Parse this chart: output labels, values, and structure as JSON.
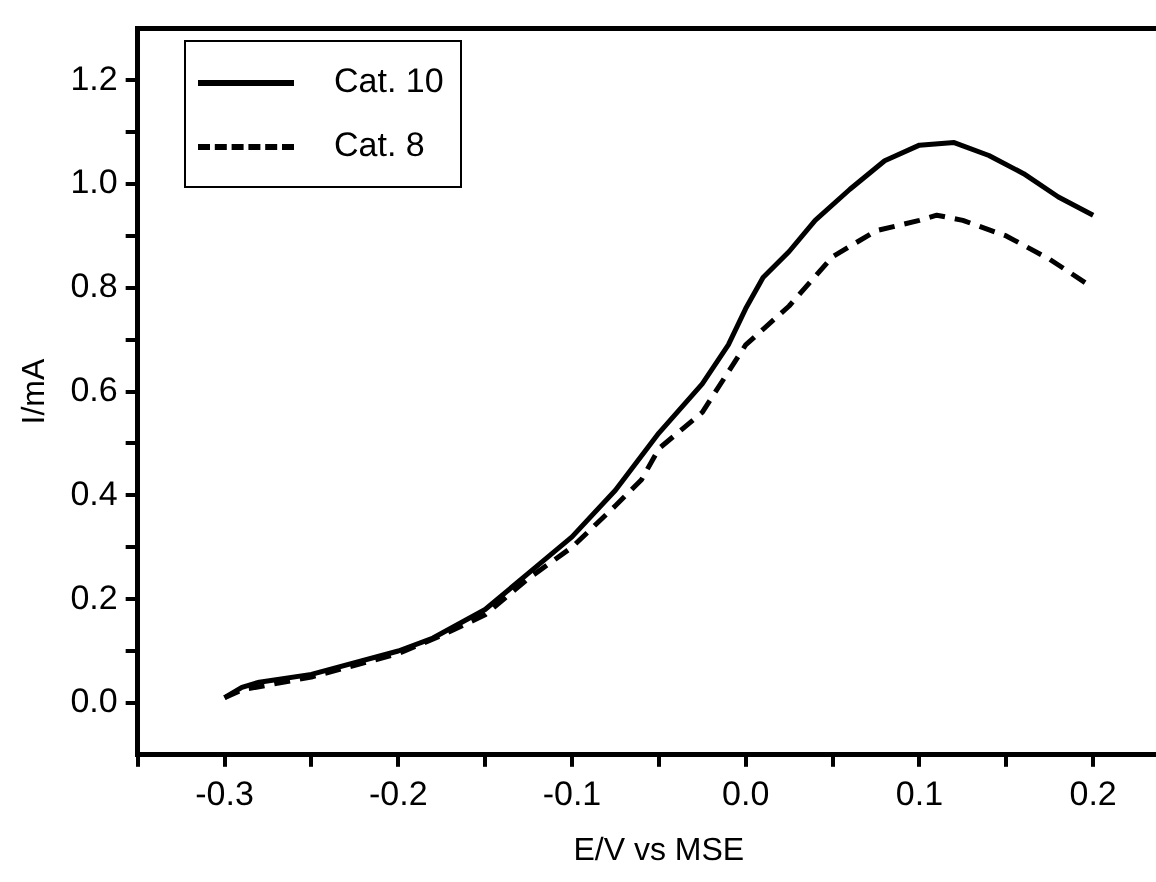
{
  "chart_data": {
    "type": "line",
    "xlabel": "E/V vs MSE",
    "ylabel": "I/mA",
    "xlim": [
      -0.35,
      0.25
    ],
    "xticks": [
      {
        "value": -0.3,
        "label": "-0.3"
      },
      {
        "value": -0.2,
        "label": "-0.2"
      },
      {
        "value": -0.1,
        "label": "-0.1"
      },
      {
        "value": 0,
        "label": "0.0"
      },
      {
        "value": 0.1,
        "label": "0.1"
      },
      {
        "value": 0.2,
        "label": "0.2"
      },
      {
        "value": -0.35,
        "label": null
      },
      {
        "value": -0.25,
        "label": null
      },
      {
        "value": -0.15,
        "label": null
      },
      {
        "value": -0.05,
        "label": null
      },
      {
        "value": 0.05,
        "label": null
      },
      {
        "value": 0.15,
        "label": null
      }
    ],
    "ylim": [
      -0.1,
      1.3
    ],
    "yticks": [
      {
        "value": 0,
        "label": "0.0"
      },
      {
        "value": 0.2,
        "label": "0.2"
      },
      {
        "value": 0.4,
        "label": "0.4"
      },
      {
        "value": 0.6,
        "label": "0.6"
      },
      {
        "value": 0.8,
        "label": "0.8"
      },
      {
        "value": 1,
        "label": "1.0"
      },
      {
        "value": 1.2,
        "label": "1.2"
      },
      {
        "value": 0.1,
        "label": null
      },
      {
        "value": 0.3,
        "label": null
      },
      {
        "value": 0.5,
        "label": null
      },
      {
        "value": 0.7,
        "label": null
      },
      {
        "value": 0.9,
        "label": null
      },
      {
        "value": 1.1,
        "label": null
      }
    ],
    "grid": false,
    "legend": "top left",
    "marker": "none",
    "series": [
      {
        "name": "Cat. 10",
        "color": "#000000",
        "line_style": "solid",
        "x": [
          -0.3,
          -0.29,
          -0.28,
          -0.25,
          -0.2,
          -0.18,
          -0.15,
          -0.125,
          -0.1,
          -0.075,
          -0.05,
          -0.025,
          -0.01,
          0.0,
          0.01,
          0.025,
          0.04,
          0.06,
          0.08,
          0.1,
          0.12,
          0.14,
          0.16,
          0.18,
          0.2
        ],
        "values": [
          0.01,
          0.03,
          0.04,
          0.055,
          0.1,
          0.125,
          0.18,
          0.25,
          0.32,
          0.41,
          0.52,
          0.615,
          0.69,
          0.76,
          0.82,
          0.87,
          0.93,
          0.99,
          1.045,
          1.075,
          1.08,
          1.055,
          1.02,
          0.975,
          0.94
        ]
      },
      {
        "name": "Cat. 8",
        "color": "#000000",
        "line_style": "dashed",
        "x": [
          -0.3,
          -0.29,
          -0.25,
          -0.2,
          -0.175,
          -0.15,
          -0.125,
          -0.1,
          -0.075,
          -0.06,
          -0.05,
          -0.025,
          0.0,
          0.025,
          0.05,
          0.075,
          0.1,
          0.11,
          0.125,
          0.15,
          0.175,
          0.2
        ],
        "values": [
          0.01,
          0.025,
          0.05,
          0.095,
          0.13,
          0.17,
          0.24,
          0.3,
          0.38,
          0.43,
          0.49,
          0.56,
          0.69,
          0.765,
          0.86,
          0.91,
          0.93,
          0.94,
          0.93,
          0.9,
          0.855,
          0.8
        ]
      }
    ]
  }
}
